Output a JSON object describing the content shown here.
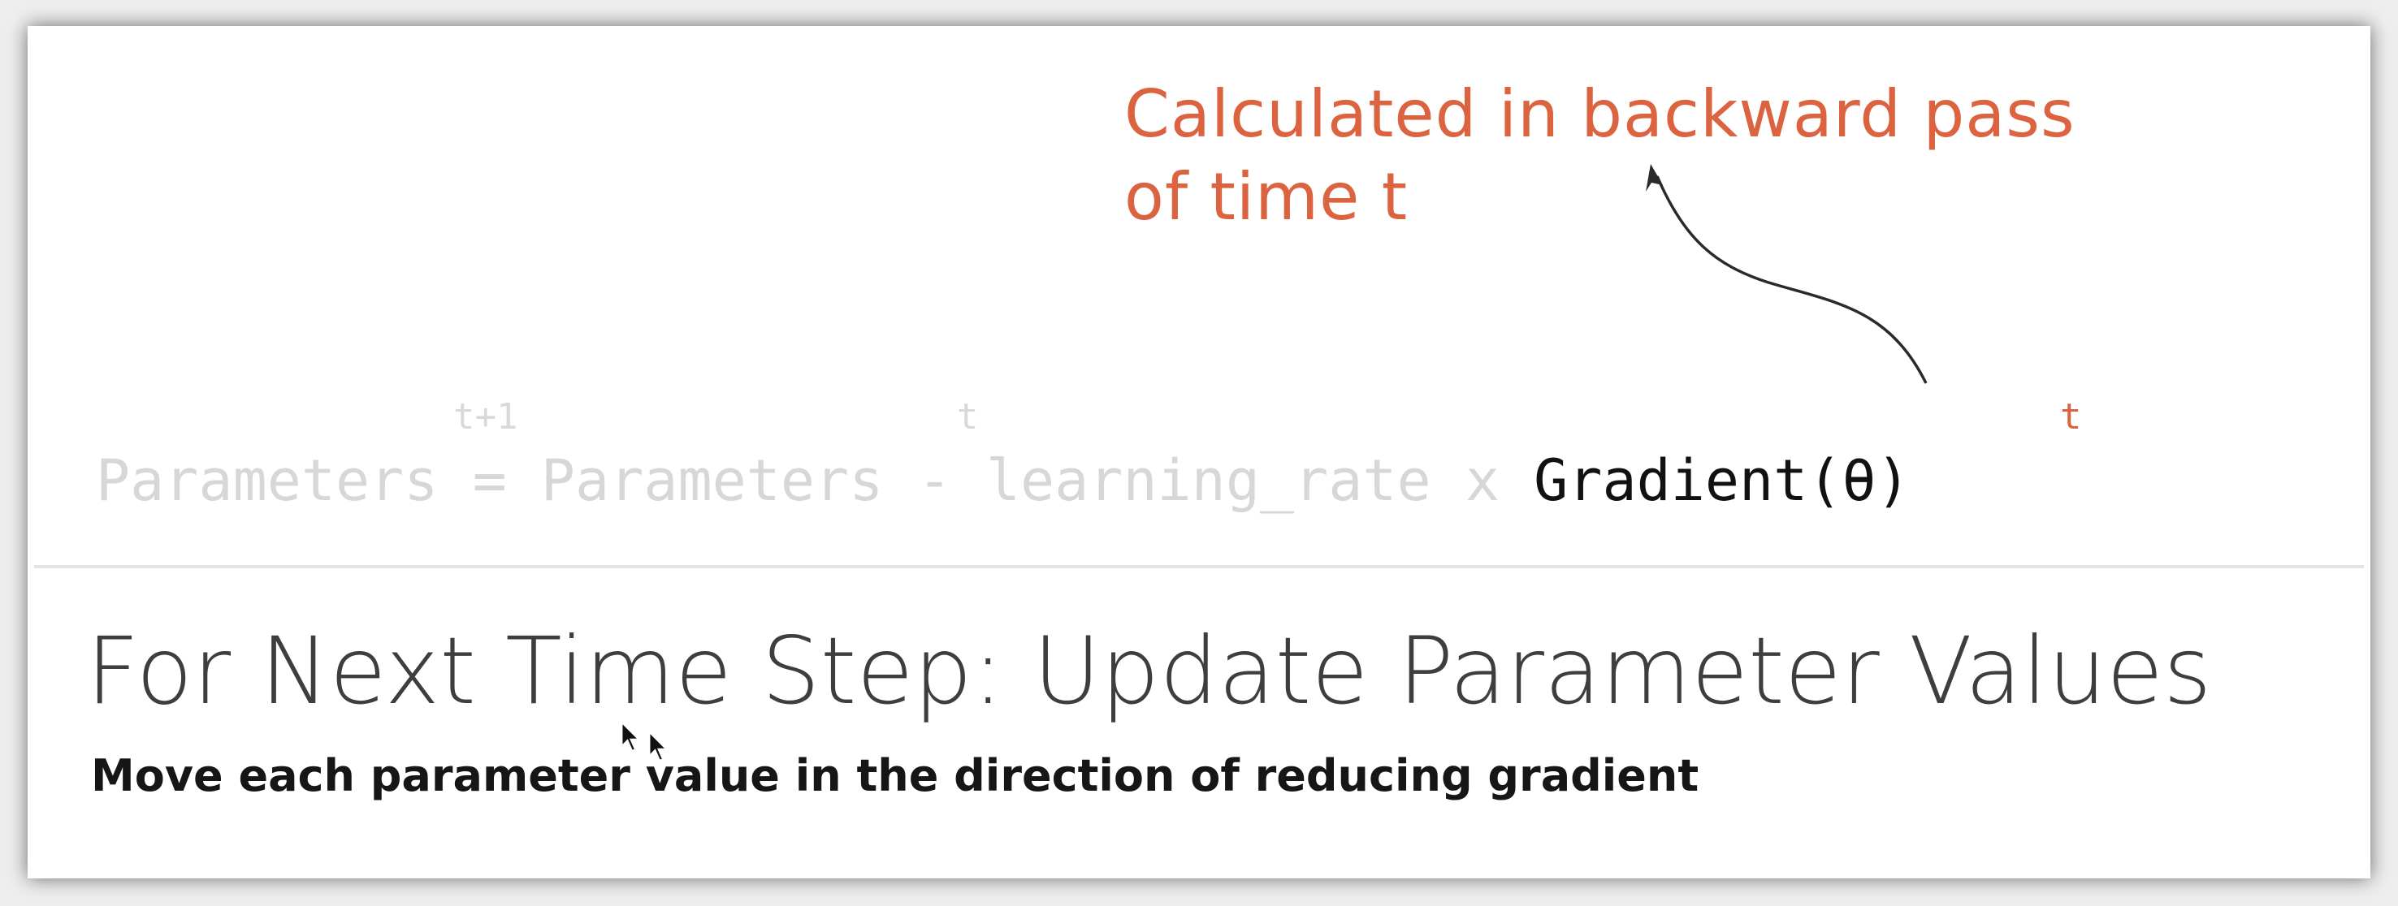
{
  "annotation": {
    "line1": "Calculated in backward pass",
    "line2": "of time t",
    "color": "#dc6340"
  },
  "equation": {
    "lhs": "Parameters",
    "lhs_sup": "t+1",
    "equals": "=",
    "params": "Parameters",
    "params_sup": "t",
    "minus": "-",
    "lr": "learning_rate",
    "times": "x",
    "gradient": "Gradient(θ)",
    "gradient_sup": "t"
  },
  "title": "For Next Time Step: Update Parameter Values",
  "subtitle": "Move each parameter value in the direction of reducing gradient",
  "icons": [
    "arrow-annotation",
    "mouse-cursor-icon"
  ]
}
